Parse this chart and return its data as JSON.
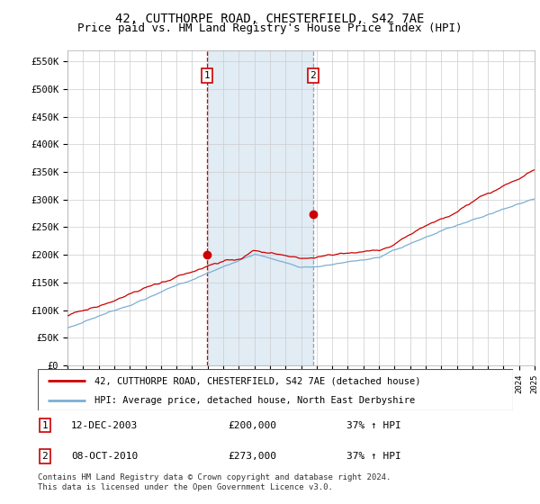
{
  "title": "42, CUTTHORPE ROAD, CHESTERFIELD, S42 7AE",
  "subtitle": "Price paid vs. HM Land Registry's House Price Index (HPI)",
  "title_fontsize": 10,
  "subtitle_fontsize": 9,
  "ylim": [
    0,
    570000
  ],
  "yticks": [
    0,
    50000,
    100000,
    150000,
    200000,
    250000,
    300000,
    350000,
    400000,
    450000,
    500000,
    550000
  ],
  "ytick_labels": [
    "£0",
    "£50K",
    "£100K",
    "£150K",
    "£200K",
    "£250K",
    "£300K",
    "£350K",
    "£400K",
    "£450K",
    "£500K",
    "£550K"
  ],
  "hpi_color": "#7bafd4",
  "price_color": "#cc0000",
  "transaction1_date": 2003.95,
  "transaction1_price": 200000,
  "transaction1_label": "1",
  "transaction2_date": 2010.77,
  "transaction2_price": 273000,
  "transaction2_label": "2",
  "legend_label1": "42, CUTTHORPE ROAD, CHESTERFIELD, S42 7AE (detached house)",
  "legend_label2": "HPI: Average price, detached house, North East Derbyshire",
  "table_row1": [
    "1",
    "12-DEC-2003",
    "£200,000",
    "37% ↑ HPI"
  ],
  "table_row2": [
    "2",
    "08-OCT-2010",
    "£273,000",
    "37% ↑ HPI"
  ],
  "footer": "Contains HM Land Registry data © Crown copyright and database right 2024.\nThis data is licensed under the Open Government Licence v3.0.",
  "bg_shade_color": "#d6e4f0",
  "vline1_color": "#cc0000",
  "vline2_color": "#aaaacc"
}
